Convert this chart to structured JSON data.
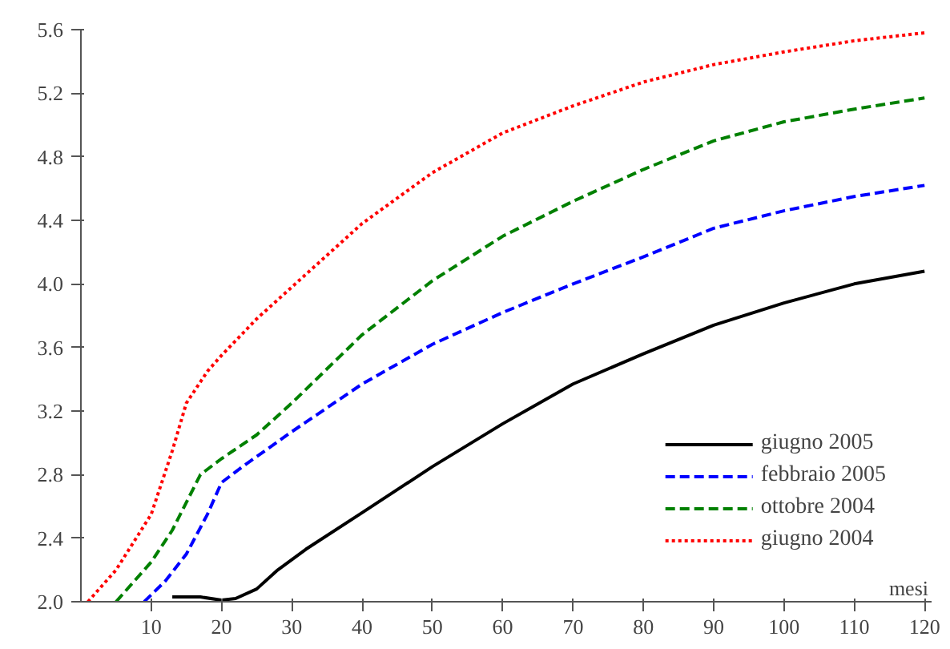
{
  "chart_data": {
    "type": "line",
    "xlabel": "mesi",
    "xlim": [
      0,
      121
    ],
    "ylim": [
      2.0,
      5.6
    ],
    "xticks": [
      10,
      20,
      30,
      40,
      50,
      60,
      70,
      80,
      90,
      100,
      110,
      120
    ],
    "yticks": [
      {
        "value": 2.0,
        "label": "2.0"
      },
      {
        "value": 2.4,
        "label": "2.4"
      },
      {
        "value": 2.8,
        "label": "2.8"
      },
      {
        "value": 3.2,
        "label": "3.2"
      },
      {
        "value": 3.6,
        "label": "3.6"
      },
      {
        "value": 4.0,
        "label": "4.0"
      },
      {
        "value": 4.4,
        "label": "4.4"
      },
      {
        "value": 4.8,
        "label": "4.8"
      },
      {
        "value": 5.2,
        "label": "5.2"
      },
      {
        "value": 5.6,
        "label": "5.6"
      }
    ],
    "grid": false,
    "legend": "bottom right",
    "marker": "none",
    "series": [
      {
        "name": "giugno 2005",
        "color": "#000000",
        "line_style": "solid",
        "x": [
          13,
          17,
          20,
          22,
          25,
          28,
          32,
          40,
          50,
          60,
          70,
          80,
          90,
          100,
          110,
          120
        ],
        "values": [
          2.03,
          2.03,
          2.01,
          2.02,
          2.08,
          2.2,
          2.33,
          2.56,
          2.85,
          3.12,
          3.37,
          3.56,
          3.74,
          3.88,
          4.0,
          4.08
        ]
      },
      {
        "name": "febbraio 2005",
        "color": "#0000ff",
        "line_style": "dashed",
        "x": [
          9,
          12,
          15,
          18,
          20,
          23,
          30,
          40,
          50,
          60,
          70,
          80,
          90,
          100,
          110,
          120
        ],
        "values": [
          2.0,
          2.13,
          2.3,
          2.55,
          2.75,
          2.85,
          3.07,
          3.37,
          3.62,
          3.82,
          4.0,
          4.17,
          4.35,
          4.46,
          4.55,
          4.62
        ]
      },
      {
        "name": "ottobre 2004",
        "color": "#008000",
        "line_style": "dashed",
        "x": [
          5,
          10,
          13,
          17,
          20,
          25,
          30,
          40,
          50,
          60,
          70,
          80,
          90,
          100,
          110,
          120
        ],
        "values": [
          2.0,
          2.25,
          2.45,
          2.8,
          2.9,
          3.05,
          3.25,
          3.68,
          4.02,
          4.3,
          4.52,
          4.72,
          4.9,
          5.02,
          5.1,
          5.17
        ]
      },
      {
        "name": "giugno 2004",
        "color": "#ff0000",
        "line_style": "dotted",
        "x": [
          1,
          5,
          10,
          13,
          15,
          18,
          20,
          25,
          30,
          40,
          50,
          60,
          70,
          80,
          90,
          100,
          110,
          120
        ],
        "values": [
          2.0,
          2.2,
          2.55,
          2.95,
          3.25,
          3.45,
          3.55,
          3.78,
          3.98,
          4.38,
          4.7,
          4.95,
          5.12,
          5.27,
          5.38,
          5.46,
          5.53,
          5.58
        ]
      }
    ]
  }
}
